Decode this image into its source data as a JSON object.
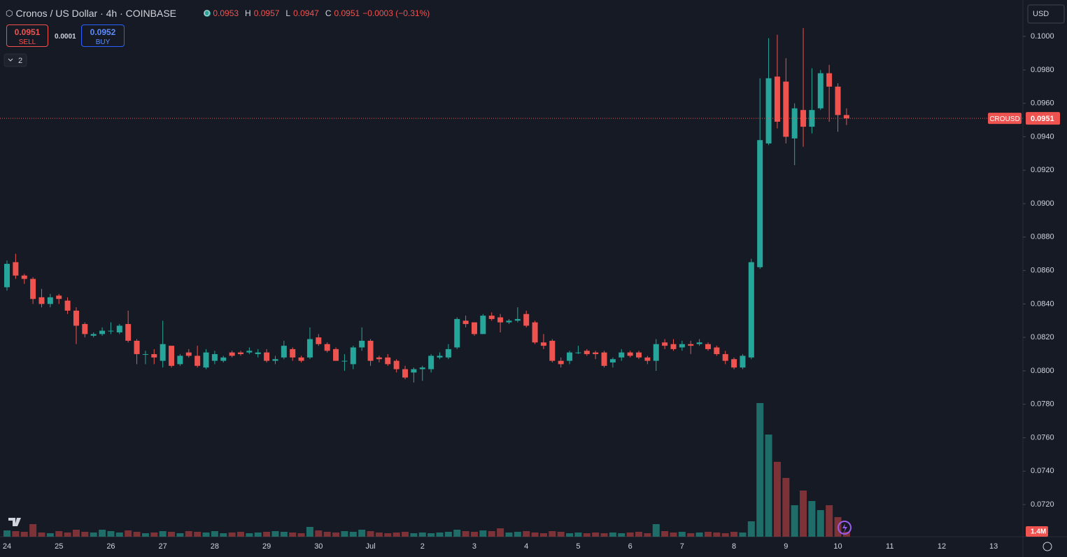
{
  "header": {
    "title": "Cronos / US Dollar · 4h · COINBASE",
    "o": "O",
    "open": "0.0953",
    "h": "H",
    "high": "0.0957",
    "l": "L",
    "low": "0.0947",
    "c": "C",
    "close": "0.0951",
    "change": "−0.0003 (−0.31%)",
    "sell_price": "0.0951",
    "sell": "SELL",
    "spread": "0.0001",
    "buy_price": "0.0952",
    "buy": "BUY",
    "indicators": "2",
    "currency": "USD"
  },
  "chart_data": {
    "type": "candlestick",
    "up_color": "#26a69a",
    "down_color": "#ef5350",
    "volume_up_color": "#1e6d68",
    "volume_down_color": "#7c3236",
    "ylim": [
      0.07008,
      0.10218
    ],
    "yticks": [
      {
        "value": 0.1,
        "label": "0.1000"
      },
      {
        "value": 0.098,
        "label": "0.0980"
      },
      {
        "value": 0.096,
        "label": "0.0960"
      },
      {
        "value": 0.094,
        "label": "0.0940"
      },
      {
        "value": 0.092,
        "label": "0.0920"
      },
      {
        "value": 0.09,
        "label": "0.0900"
      },
      {
        "value": 0.088,
        "label": "0.0880"
      },
      {
        "value": 0.086,
        "label": "0.0860"
      },
      {
        "value": 0.084,
        "label": "0.0840"
      },
      {
        "value": 0.082,
        "label": "0.0820"
      },
      {
        "value": 0.08,
        "label": "0.0800"
      },
      {
        "value": 0.078,
        "label": "0.0780"
      },
      {
        "value": 0.076,
        "label": "0.0760"
      },
      {
        "value": 0.074,
        "label": "0.0740"
      },
      {
        "value": 0.072,
        "label": "0.0720"
      }
    ],
    "price_line": {
      "symbol": "CROUSD",
      "value": 0.0951
    },
    "categories": [
      "24",
      null,
      null,
      null,
      null,
      null,
      "25",
      null,
      null,
      null,
      null,
      null,
      "26",
      null,
      null,
      null,
      null,
      null,
      "27",
      null,
      null,
      null,
      null,
      null,
      "28",
      null,
      null,
      null,
      null,
      null,
      "29",
      null,
      null,
      null,
      null,
      null,
      "30",
      null,
      null,
      null,
      null,
      null,
      "Jul",
      null,
      null,
      null,
      null,
      null,
      "2",
      null,
      null,
      null,
      null,
      null,
      "3",
      null,
      null,
      null,
      null,
      null,
      "4",
      null,
      null,
      null,
      null,
      null,
      "5",
      null,
      null,
      null,
      null,
      null,
      "6",
      null,
      null,
      null,
      null,
      null,
      "7",
      null,
      null,
      null,
      null,
      null,
      "8",
      null,
      null,
      null,
      null,
      null,
      "9",
      null,
      null,
      null,
      null,
      null,
      "10",
      null,
      null,
      null,
      null,
      null,
      "11",
      null,
      null,
      null,
      null,
      null,
      "12",
      null,
      null,
      null,
      null,
      null,
      "13"
    ],
    "open": [
      0.085,
      0.0865,
      0.0857,
      0.0855,
      0.0844,
      0.084,
      0.0845,
      0.0842,
      0.0836,
      0.0828,
      0.0821,
      0.0822,
      0.0824,
      0.0823,
      0.0828,
      0.0818,
      0.081,
      0.081,
      0.0806,
      0.0815,
      0.0804,
      0.0811,
      0.0809,
      0.0802,
      0.0806,
      0.0806,
      0.0811,
      0.0811,
      0.0811,
      0.081,
      0.0811,
      0.0806,
      0.0808,
      0.0813,
      0.0808,
      0.0808,
      0.082,
      0.0816,
      0.0813,
      0.0806,
      0.0804,
      0.0814,
      0.0818,
      0.0808,
      0.0808,
      0.0806,
      0.0801,
      0.0799,
      0.0801,
      0.0801,
      0.0808,
      0.0808,
      0.0814,
      0.083,
      0.0829,
      0.0822,
      0.0833,
      0.0832,
      0.0829,
      0.083,
      0.0834,
      0.0829,
      0.0817,
      0.0818,
      0.0806,
      0.0806,
      0.0811,
      0.0812,
      0.0811,
      0.0811,
      0.0805,
      0.0808,
      0.0811,
      0.0811,
      0.0808,
      0.0806,
      0.0817,
      0.0816,
      0.0814,
      0.0816,
      0.0816,
      0.0816,
      0.0814,
      0.081,
      0.0807,
      0.0802,
      0.0808,
      0.0862,
      0.0936,
      0.0976,
      0.0973,
      0.0939,
      0.0956,
      0.0946,
      0.0957,
      0.0978,
      0.097,
      0.0953,
      null,
      null,
      null,
      null,
      null,
      null,
      null,
      null,
      null,
      null,
      null,
      null,
      null,
      null,
      null,
      null,
      null
    ],
    "high": [
      0.0866,
      0.087,
      0.0858,
      0.0856,
      0.0849,
      0.0846,
      0.0846,
      0.0844,
      0.0838,
      0.0829,
      0.0823,
      0.0826,
      0.0829,
      0.0828,
      0.0836,
      0.0819,
      0.0812,
      0.0813,
      0.083,
      0.0815,
      0.081,
      0.0813,
      0.0815,
      0.0813,
      0.0812,
      0.0809,
      0.0812,
      0.0812,
      0.0814,
      0.0813,
      0.0813,
      0.0809,
      0.0818,
      0.0814,
      0.0809,
      0.0826,
      0.0822,
      0.0817,
      0.0814,
      0.081,
      0.0815,
      0.0826,
      0.0819,
      0.0809,
      0.081,
      0.0807,
      0.0803,
      0.0802,
      0.0803,
      0.081,
      0.0811,
      0.0816,
      0.0832,
      0.0833,
      0.0829,
      0.0834,
      0.0835,
      0.0834,
      0.0831,
      0.0838,
      0.0836,
      0.083,
      0.0822,
      0.0819,
      0.0808,
      0.0812,
      0.0815,
      0.0813,
      0.0812,
      0.0812,
      0.0808,
      0.0813,
      0.0812,
      0.0812,
      0.0809,
      0.0819,
      0.0819,
      0.0819,
      0.0818,
      0.0818,
      0.0819,
      0.0817,
      0.0815,
      0.0812,
      0.0808,
      0.081,
      0.0867,
      0.0975,
      0.0999,
      0.1001,
      0.0987,
      0.096,
      0.1005,
      0.0981,
      0.098,
      0.0983,
      0.0972,
      0.0957,
      null,
      null,
      null,
      null,
      null,
      null,
      null,
      null,
      null,
      null,
      null,
      null,
      null,
      null,
      null,
      null,
      null
    ],
    "low": [
      0.0848,
      0.0855,
      0.0852,
      0.084,
      0.0838,
      0.0838,
      0.084,
      0.0834,
      0.0816,
      0.082,
      0.082,
      0.0821,
      0.0822,
      0.0822,
      0.0817,
      0.0804,
      0.0804,
      0.0804,
      0.0802,
      0.0802,
      0.0803,
      0.0808,
      0.0802,
      0.0801,
      0.0804,
      0.0805,
      0.0808,
      0.0809,
      0.081,
      0.0808,
      0.0805,
      0.0804,
      0.0807,
      0.0806,
      0.0805,
      0.0807,
      0.0815,
      0.0811,
      0.0806,
      0.08,
      0.0801,
      0.0812,
      0.0803,
      0.0805,
      0.0803,
      0.0799,
      0.0795,
      0.0793,
      0.0794,
      0.0799,
      0.0807,
      0.0807,
      0.0813,
      0.0826,
      0.0821,
      0.0822,
      0.083,
      0.0823,
      0.0828,
      0.0829,
      0.0826,
      0.0816,
      0.0813,
      0.0805,
      0.0802,
      0.0804,
      0.081,
      0.0809,
      0.0807,
      0.0802,
      0.0802,
      0.0806,
      0.0808,
      0.0807,
      0.0804,
      0.08,
      0.0813,
      0.0812,
      0.0812,
      0.081,
      0.0815,
      0.0812,
      0.0809,
      0.0804,
      0.0801,
      0.0801,
      0.0807,
      0.0861,
      0.0935,
      0.0945,
      0.0936,
      0.0923,
      0.0934,
      0.0942,
      0.0956,
      0.0949,
      0.0943,
      0.0947,
      null,
      null,
      null,
      null,
      null,
      null,
      null,
      null,
      null,
      null,
      null,
      null,
      null,
      null,
      null,
      null,
      null
    ],
    "close": [
      0.0864,
      0.0857,
      0.0855,
      0.0843,
      0.084,
      0.0844,
      0.0843,
      0.0836,
      0.0827,
      0.0822,
      0.0822,
      0.0824,
      0.0824,
      0.0827,
      0.0818,
      0.081,
      0.081,
      0.0808,
      0.0816,
      0.0803,
      0.0809,
      0.0809,
      0.0803,
      0.0811,
      0.081,
      0.0808,
      0.0809,
      0.081,
      0.0812,
      0.0811,
      0.0806,
      0.0807,
      0.0815,
      0.0808,
      0.0806,
      0.0819,
      0.0816,
      0.0812,
      0.0806,
      0.0806,
      0.0814,
      0.0818,
      0.0806,
      0.0807,
      0.0804,
      0.0801,
      0.0796,
      0.0801,
      0.0802,
      0.0809,
      0.0809,
      0.0813,
      0.0831,
      0.0828,
      0.0822,
      0.0833,
      0.0831,
      0.0829,
      0.083,
      0.0831,
      0.0827,
      0.0817,
      0.0815,
      0.0806,
      0.0804,
      0.0811,
      0.0811,
      0.081,
      0.081,
      0.0803,
      0.0807,
      0.0811,
      0.0809,
      0.0808,
      0.0806,
      0.0816,
      0.0815,
      0.0813,
      0.0816,
      0.0815,
      0.0817,
      0.0813,
      0.081,
      0.0806,
      0.0802,
      0.0809,
      0.0865,
      0.0938,
      0.0975,
      0.0949,
      0.094,
      0.0957,
      0.0946,
      0.0956,
      0.0978,
      0.097,
      0.0953,
      0.0951,
      null,
      null,
      null,
      null,
      null,
      null,
      null,
      null,
      null,
      null,
      null,
      null,
      null,
      null,
      null,
      null,
      null
    ],
    "volume": [
      1800000,
      1600000,
      1400000,
      3600000,
      1200000,
      1000000,
      1600000,
      1200000,
      2000000,
      1400000,
      1200000,
      2000000,
      1600000,
      1200000,
      1800000,
      1400000,
      1000000,
      1200000,
      1600000,
      1400000,
      1000000,
      1600000,
      1400000,
      1200000,
      1600000,
      1000000,
      1200000,
      1400000,
      1000000,
      1200000,
      1400000,
      1600000,
      1400000,
      1200000,
      1000000,
      2800000,
      1800000,
      1400000,
      1200000,
      1600000,
      1400000,
      2000000,
      1600000,
      1200000,
      1000000,
      1200000,
      1400000,
      1000000,
      1200000,
      1000000,
      1200000,
      1400000,
      2000000,
      1600000,
      1400000,
      1800000,
      1600000,
      2400000,
      1200000,
      1400000,
      1600000,
      1200000,
      1000000,
      1600000,
      1400000,
      1000000,
      1200000,
      1000000,
      1200000,
      1000000,
      1200000,
      1000000,
      1200000,
      1400000,
      1000000,
      3600000,
      1600000,
      1200000,
      1400000,
      1000000,
      1200000,
      1400000,
      1200000,
      1000000,
      1400000,
      1200000,
      4400000,
      38200000,
      29200000,
      21400000,
      16800000,
      9000000,
      13200000,
      10200000,
      7600000,
      9000000,
      5600000,
      1400000,
      null,
      null,
      null,
      null,
      null,
      null,
      null,
      null,
      null,
      null,
      null,
      null,
      null,
      null,
      null,
      null,
      null
    ],
    "volume_value_labels": [
      null,
      null,
      null,
      null,
      null,
      null,
      null,
      null,
      null,
      null,
      null,
      null,
      null,
      null,
      null,
      null,
      null,
      null,
      null,
      null,
      null,
      null,
      null,
      null,
      null,
      null,
      null,
      null,
      null,
      null,
      null,
      null,
      null,
      null,
      null,
      null,
      null,
      null,
      null,
      null,
      null,
      null,
      null,
      null,
      null,
      null,
      null,
      null,
      null,
      null,
      null,
      null,
      null,
      null,
      null,
      null,
      null,
      null,
      null,
      null,
      null,
      null,
      null,
      null,
      null,
      null,
      null,
      null,
      null,
      null,
      null,
      null,
      null,
      null,
      null,
      null,
      null,
      null,
      null,
      null,
      null,
      null,
      null,
      null,
      null,
      null,
      null,
      null,
      null,
      null,
      null,
      null,
      null,
      null,
      null,
      null,
      null,
      "1.4M",
      null,
      null,
      null,
      null,
      null,
      null,
      null,
      null,
      null,
      null,
      null,
      null,
      null,
      null,
      null,
      null,
      null
    ]
  }
}
